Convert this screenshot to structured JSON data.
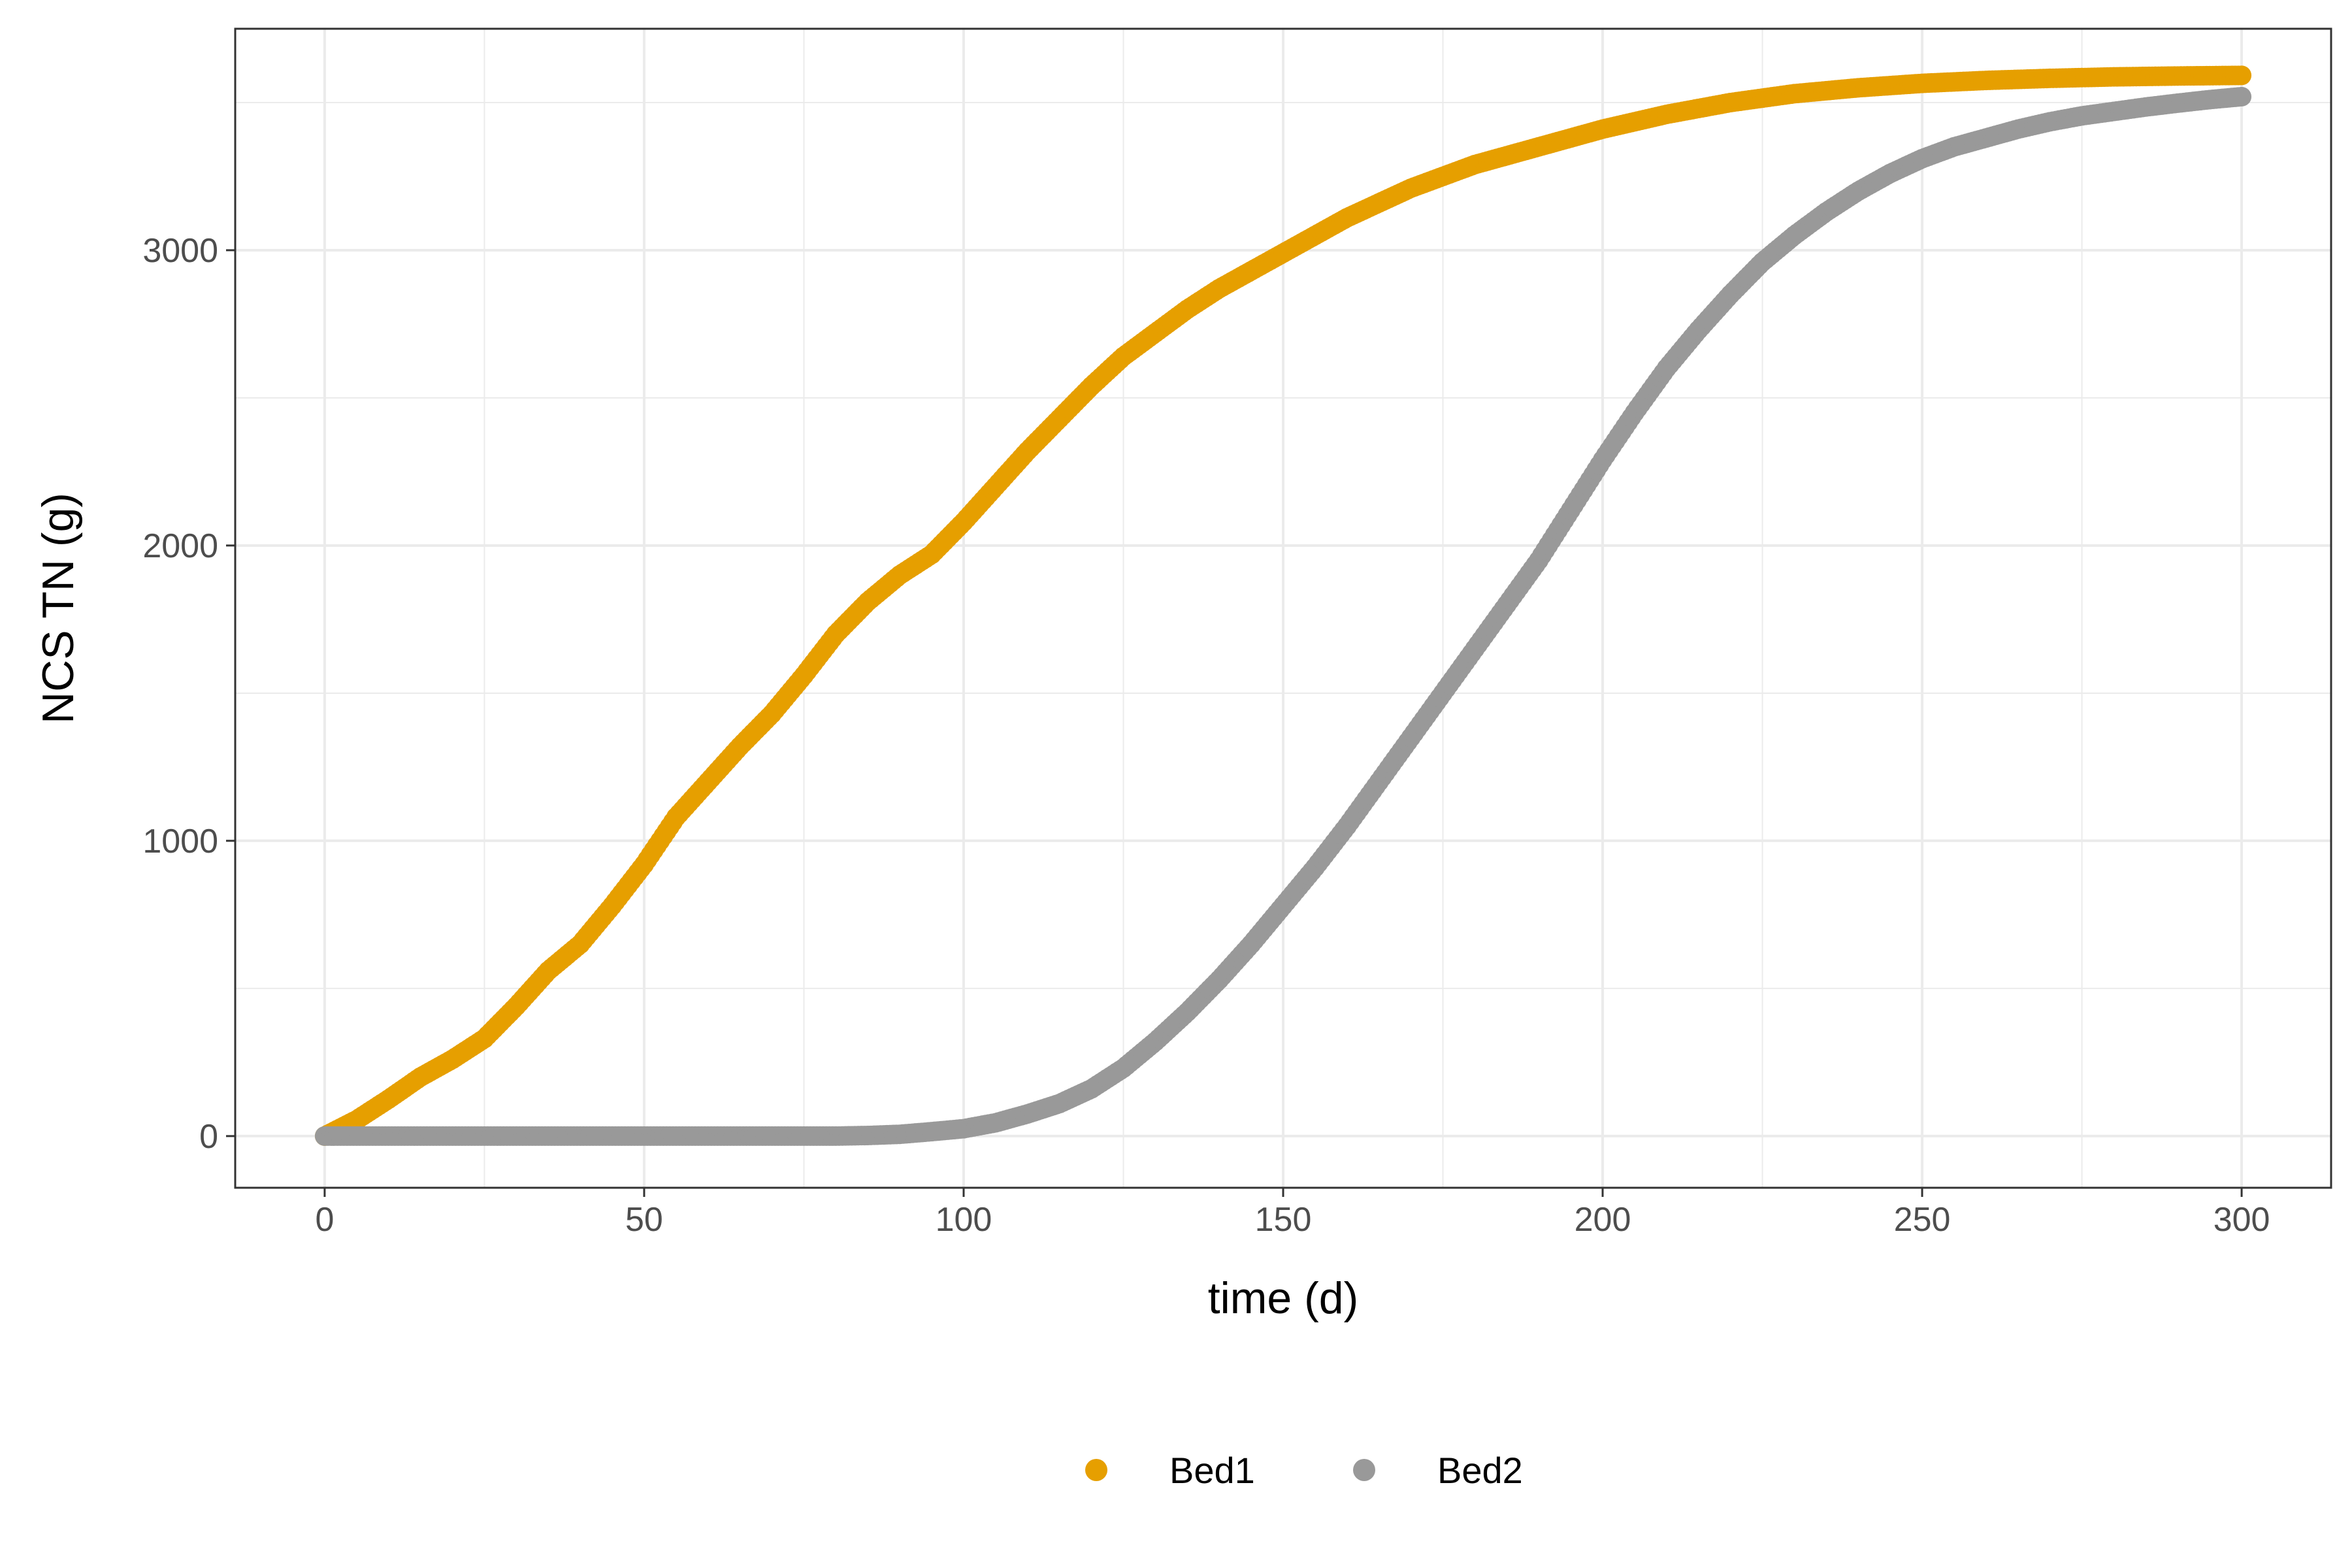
{
  "chart_data": {
    "type": "scatter",
    "xlabel": "time (d)",
    "ylabel": "NCS TN (g)",
    "xlim": [
      -14,
      314
    ],
    "ylim": [
      -175,
      3750
    ],
    "xticks": [
      0,
      50,
      100,
      150,
      200,
      250,
      300
    ],
    "xtick_labels": [
      "0",
      "50",
      "100",
      "150",
      "200",
      "250",
      "300"
    ],
    "yticks": [
      0,
      1000,
      2000,
      3000
    ],
    "ytick_labels": [
      "0",
      "1000",
      "2000",
      "3000"
    ],
    "grid": true,
    "legend_position": "bottom",
    "series": [
      {
        "name": "Bed1",
        "color": "#E69F00",
        "x": [
          0,
          5,
          10,
          15,
          20,
          25,
          30,
          35,
          40,
          45,
          50,
          55,
          60,
          65,
          70,
          75,
          80,
          85,
          90,
          95,
          100,
          105,
          110,
          115,
          120,
          125,
          130,
          135,
          140,
          145,
          150,
          155,
          160,
          165,
          170,
          175,
          180,
          185,
          190,
          195,
          200,
          210,
          220,
          230,
          240,
          250,
          260,
          270,
          280,
          290,
          300
        ],
        "y": [
          0,
          55,
          125,
          200,
          260,
          330,
          440,
          560,
          650,
          780,
          920,
          1080,
          1200,
          1320,
          1430,
          1560,
          1700,
          1810,
          1900,
          1970,
          2080,
          2200,
          2320,
          2430,
          2540,
          2640,
          2720,
          2800,
          2870,
          2930,
          2990,
          3050,
          3110,
          3160,
          3210,
          3250,
          3290,
          3320,
          3350,
          3380,
          3410,
          3460,
          3500,
          3530,
          3550,
          3565,
          3575,
          3582,
          3587,
          3590,
          3592
        ]
      },
      {
        "name": "Bed2",
        "color": "#999999",
        "x": [
          0,
          10,
          20,
          30,
          40,
          50,
          60,
          70,
          80,
          85,
          90,
          95,
          100,
          105,
          110,
          115,
          120,
          125,
          130,
          135,
          140,
          145,
          150,
          155,
          160,
          165,
          170,
          175,
          180,
          185,
          190,
          195,
          200,
          205,
          210,
          215,
          220,
          225,
          230,
          235,
          240,
          245,
          250,
          255,
          260,
          265,
          270,
          275,
          280,
          285,
          290,
          295,
          300
        ],
        "y": [
          0,
          0,
          0,
          0,
          0,
          0,
          0,
          0,
          0,
          2,
          6,
          15,
          25,
          45,
          75,
          110,
          160,
          230,
          320,
          420,
          530,
          650,
          780,
          910,
          1050,
          1200,
          1350,
          1500,
          1650,
          1800,
          1950,
          2120,
          2290,
          2450,
          2600,
          2730,
          2850,
          2960,
          3050,
          3130,
          3200,
          3260,
          3310,
          3350,
          3380,
          3410,
          3435,
          3455,
          3470,
          3485,
          3498,
          3510,
          3520
        ]
      }
    ]
  }
}
